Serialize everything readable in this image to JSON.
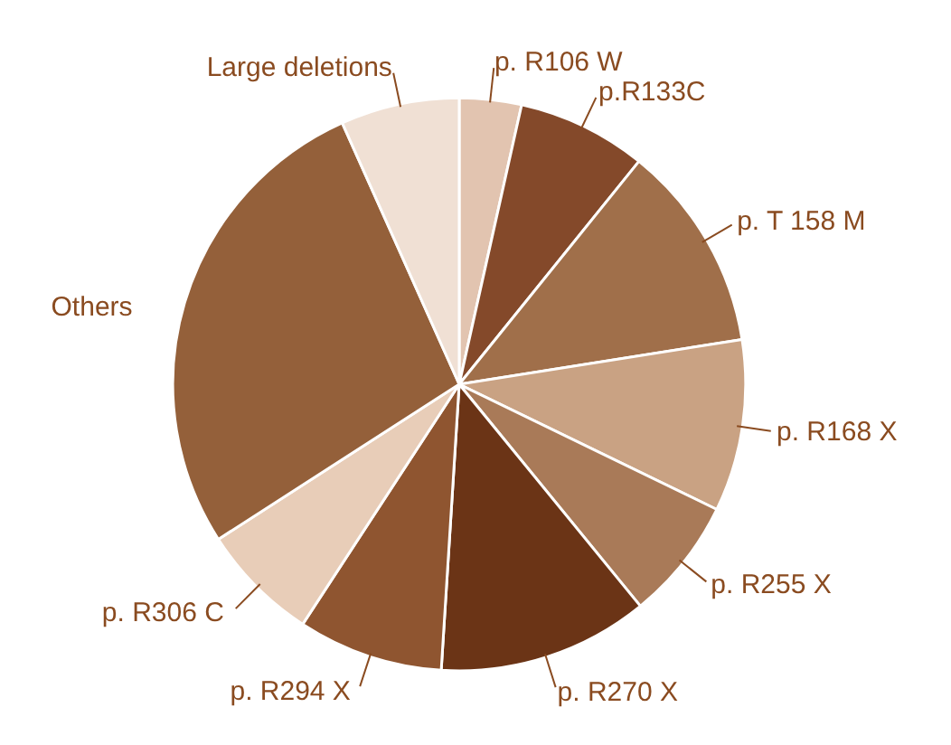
{
  "chart_data": {
    "type": "pie",
    "categories": [
      "p. R106  W",
      "p.R133C",
      "p. T 158  M",
      "p. R168  X",
      "p. R255  X",
      "p. R270  X",
      "p. R294  X",
      "p. R306  C",
      "Others",
      "Large deletions"
    ],
    "values": [
      3.5,
      7.3,
      11.7,
      9.7,
      6.9,
      11.9,
      8.2,
      6.7,
      27.4,
      6.7
    ],
    "colors": [
      "#e2c4b0",
      "#84492a",
      "#a06f4a",
      "#c9a283",
      "#a97a58",
      "#6b3416",
      "#8f5530",
      "#e8cdb8",
      "#94603a",
      "#f0e0d4"
    ]
  }
}
